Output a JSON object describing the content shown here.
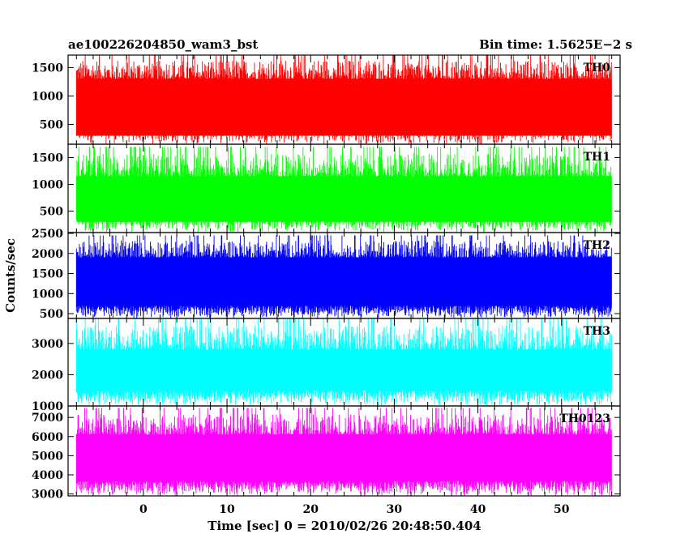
{
  "header": {
    "title_left": "ae100226204850_wam3_bst",
    "title_right": "Bin time: 1.5625E−2 s"
  },
  "chart_data": {
    "type": "line",
    "title": "ae100226204850_wam3_bst",
    "subtitle": "Bin time: 1.5625E−2 s",
    "xlabel": "Time [sec] 0 = 2010/02/26 20:48:50.404",
    "ylabel": "Counts/sec",
    "xlim": [
      -9,
      57
    ],
    "x_range_data": [
      -8,
      56
    ],
    "x_ticks": [
      0,
      10,
      20,
      30,
      40,
      50
    ],
    "bin_time_s": 0.015625,
    "grid": false,
    "panels": [
      {
        "name": "TH0",
        "color": "#ff0000",
        "ylim": [
          150,
          1720
        ],
        "y_ticks": [
          500,
          1000,
          1500
        ],
        "envelope_min": [
          150,
          450
        ],
        "core_range": [
          300,
          1300
        ],
        "peak_max": 1720
      },
      {
        "name": "TH1",
        "color": "#00ff00",
        "ylim": [
          100,
          1750
        ],
        "y_ticks": [
          500,
          1000,
          1500
        ],
        "envelope_min": [
          100,
          400
        ],
        "core_range": [
          300,
          1150
        ],
        "peak_max": 1700
      },
      {
        "name": "TH2",
        "color": "#0000ff",
        "ylim": [
          380,
          2520
        ],
        "y_ticks": [
          500,
          1000,
          1500,
          2000,
          2500
        ],
        "envelope_min": [
          380,
          700
        ],
        "core_range": [
          700,
          1900
        ],
        "peak_max": 2450
      },
      {
        "name": "TH3",
        "color": "#00ffff",
        "ylim": [
          1000,
          3800
        ],
        "y_ticks": [
          1000,
          2000,
          3000
        ],
        "envelope_min": [
          1000,
          1500
        ],
        "core_range": [
          1500,
          2800
        ],
        "peak_max": 3800
      },
      {
        "name": "TH0123",
        "color": "#ff00ff",
        "ylim": [
          2900,
          7600
        ],
        "y_ticks": [
          3000,
          4000,
          5000,
          6000,
          7000
        ],
        "envelope_min": [
          2900,
          3700
        ],
        "core_range": [
          3700,
          6100
        ],
        "peak_max": 7500
      }
    ]
  }
}
